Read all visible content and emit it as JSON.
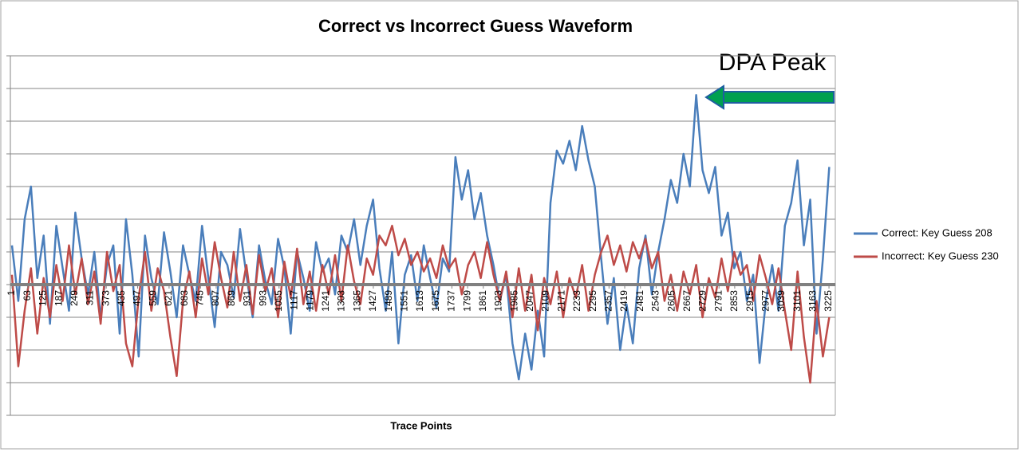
{
  "chart_data": {
    "type": "line",
    "title": "Correct  vs Incorrect Guess Waveform",
    "x_label": "Trace Points",
    "annotation": "DPA Peak",
    "x": [
      1,
      26,
      51,
      76,
      101,
      126,
      151,
      176,
      201,
      226,
      251,
      276,
      301,
      326,
      351,
      376,
      401,
      426,
      451,
      476,
      501,
      526,
      551,
      576,
      601,
      626,
      651,
      676,
      701,
      726,
      751,
      776,
      801,
      826,
      851,
      876,
      901,
      926,
      951,
      976,
      1001,
      1026,
      1051,
      1076,
      1101,
      1126,
      1151,
      1176,
      1201,
      1226,
      1251,
      1276,
      1301,
      1326,
      1351,
      1376,
      1401,
      1426,
      1451,
      1476,
      1501,
      1526,
      1551,
      1576,
      1601,
      1626,
      1651,
      1676,
      1701,
      1726,
      1751,
      1776,
      1801,
      1826,
      1851,
      1876,
      1901,
      1926,
      1951,
      1976,
      2001,
      2026,
      2051,
      2076,
      2101,
      2126,
      2151,
      2176,
      2201,
      2226,
      2251,
      2276,
      2301,
      2326,
      2351,
      2376,
      2401,
      2426,
      2451,
      2476,
      2501,
      2526,
      2551,
      2576,
      2601,
      2626,
      2651,
      2676,
      2701,
      2726,
      2751,
      2776,
      2801,
      2826,
      2851,
      2876,
      2901,
      2926,
      2951,
      2976,
      3001,
      3026,
      3051,
      3076,
      3101,
      3126,
      3151,
      3176,
      3201,
      3226
    ],
    "xlim": [
      1,
      3250
    ],
    "xticks": [
      1,
      63,
      125,
      187,
      249,
      311,
      373,
      435,
      497,
      559,
      621,
      683,
      745,
      807,
      869,
      931,
      993,
      1055,
      1117,
      1179,
      1241,
      1303,
      1365,
      1427,
      1489,
      1551,
      1613,
      1675,
      1737,
      1799,
      1861,
      1923,
      1985,
      2047,
      2109,
      2171,
      2233,
      2295,
      2357,
      2419,
      2481,
      2543,
      2605,
      2667,
      2729,
      2791,
      2853,
      2915,
      2977,
      3039,
      3101,
      3163,
      3225
    ],
    "ylim": [
      -4,
      7
    ],
    "yticks": [
      -4,
      -3,
      -2,
      -1,
      0,
      1,
      2,
      3,
      4,
      5,
      6,
      7
    ],
    "grid": true,
    "legend": "right",
    "series": [
      {
        "name": "Correct: Key Guess 208",
        "color": "#4a7ebb",
        "values": [
          1.2,
          -0.5,
          2.0,
          3.0,
          0.2,
          1.5,
          -1.2,
          1.8,
          0.5,
          -0.8,
          2.2,
          0.8,
          -0.3,
          1.0,
          -1.0,
          0.6,
          1.2,
          -1.5,
          2.0,
          0.3,
          -2.2,
          1.5,
          0.2,
          -0.6,
          1.6,
          0.4,
          -1.0,
          1.2,
          0.3,
          -0.5,
          1.8,
          0.2,
          -1.3,
          1.0,
          0.6,
          -0.4,
          1.7,
          0.3,
          -1.0,
          1.2,
          0.1,
          -0.6,
          1.4,
          0.5,
          -1.5,
          1.0,
          0.2,
          -0.8,
          1.3,
          0.4,
          0.8,
          -0.3,
          1.5,
          1.0,
          2.0,
          0.6,
          1.8,
          2.6,
          0.5,
          -0.8,
          1.0,
          -1.8,
          0.3,
          0.9,
          -0.5,
          1.2,
          0.2,
          -0.7,
          0.8,
          0.4,
          3.9,
          2.6,
          3.5,
          2.0,
          2.8,
          1.5,
          0.6,
          -0.5,
          0.3,
          -1.8,
          -2.9,
          -1.5,
          -2.6,
          -0.8,
          -2.2,
          2.5,
          4.1,
          3.7,
          4.4,
          3.5,
          4.85,
          3.8,
          3.0,
          0.8,
          -1.2,
          0.2,
          -2.0,
          -0.6,
          -1.8,
          0.5,
          1.5,
          -0.3,
          1.0,
          2.0,
          3.2,
          2.5,
          4.0,
          3.0,
          5.8,
          3.5,
          2.8,
          3.6,
          1.5,
          2.2,
          0.5,
          1.0,
          -0.5,
          0.3,
          -2.4,
          -0.5,
          0.6,
          -0.8,
          1.8,
          2.5,
          3.8,
          1.2,
          2.6,
          -1.5,
          0.8,
          3.6
        ]
      },
      {
        "name": "Incorrect: Key Guess 230",
        "color": "#be4b48",
        "values": [
          0.3,
          -2.5,
          -0.8,
          0.5,
          -1.5,
          0.2,
          -1.0,
          0.6,
          -0.5,
          1.2,
          -0.3,
          0.8,
          -0.6,
          0.4,
          -1.2,
          1.0,
          -0.2,
          0.6,
          -1.8,
          -2.5,
          -0.4,
          1.0,
          -0.8,
          0.5,
          -0.2,
          -1.6,
          -2.8,
          -0.5,
          0.4,
          -1.0,
          0.8,
          -0.3,
          1.3,
          0.2,
          -0.7,
          1.0,
          -0.5,
          0.6,
          -0.9,
          0.9,
          -0.2,
          0.5,
          -1.0,
          0.7,
          -0.4,
          1.1,
          -0.6,
          0.4,
          -0.8,
          0.6,
          -0.3,
          0.9,
          -0.5,
          1.2,
          0.1,
          -0.6,
          0.8,
          0.3,
          1.5,
          1.2,
          1.8,
          0.9,
          1.4,
          0.6,
          1.0,
          0.4,
          0.8,
          0.2,
          1.2,
          0.5,
          0.8,
          -0.3,
          0.6,
          1.0,
          0.2,
          1.3,
          0.3,
          -0.5,
          0.4,
          -1.0,
          0.5,
          -0.8,
          0.3,
          -1.4,
          0.2,
          -0.6,
          0.4,
          -1.0,
          0.2,
          -0.4,
          0.6,
          -0.8,
          0.3,
          1.0,
          1.5,
          0.6,
          1.2,
          0.4,
          1.3,
          0.8,
          1.4,
          0.5,
          1.0,
          -0.5,
          0.3,
          -0.8,
          0.4,
          -0.3,
          0.6,
          -1.0,
          0.2,
          -0.4,
          0.8,
          -0.2,
          1.0,
          0.3,
          0.6,
          -0.5,
          0.9,
          0.2,
          -0.6,
          0.5,
          -0.8,
          -2.0,
          0.4,
          -1.6,
          -3.0,
          -0.5,
          -2.2,
          -1.0
        ]
      }
    ]
  }
}
